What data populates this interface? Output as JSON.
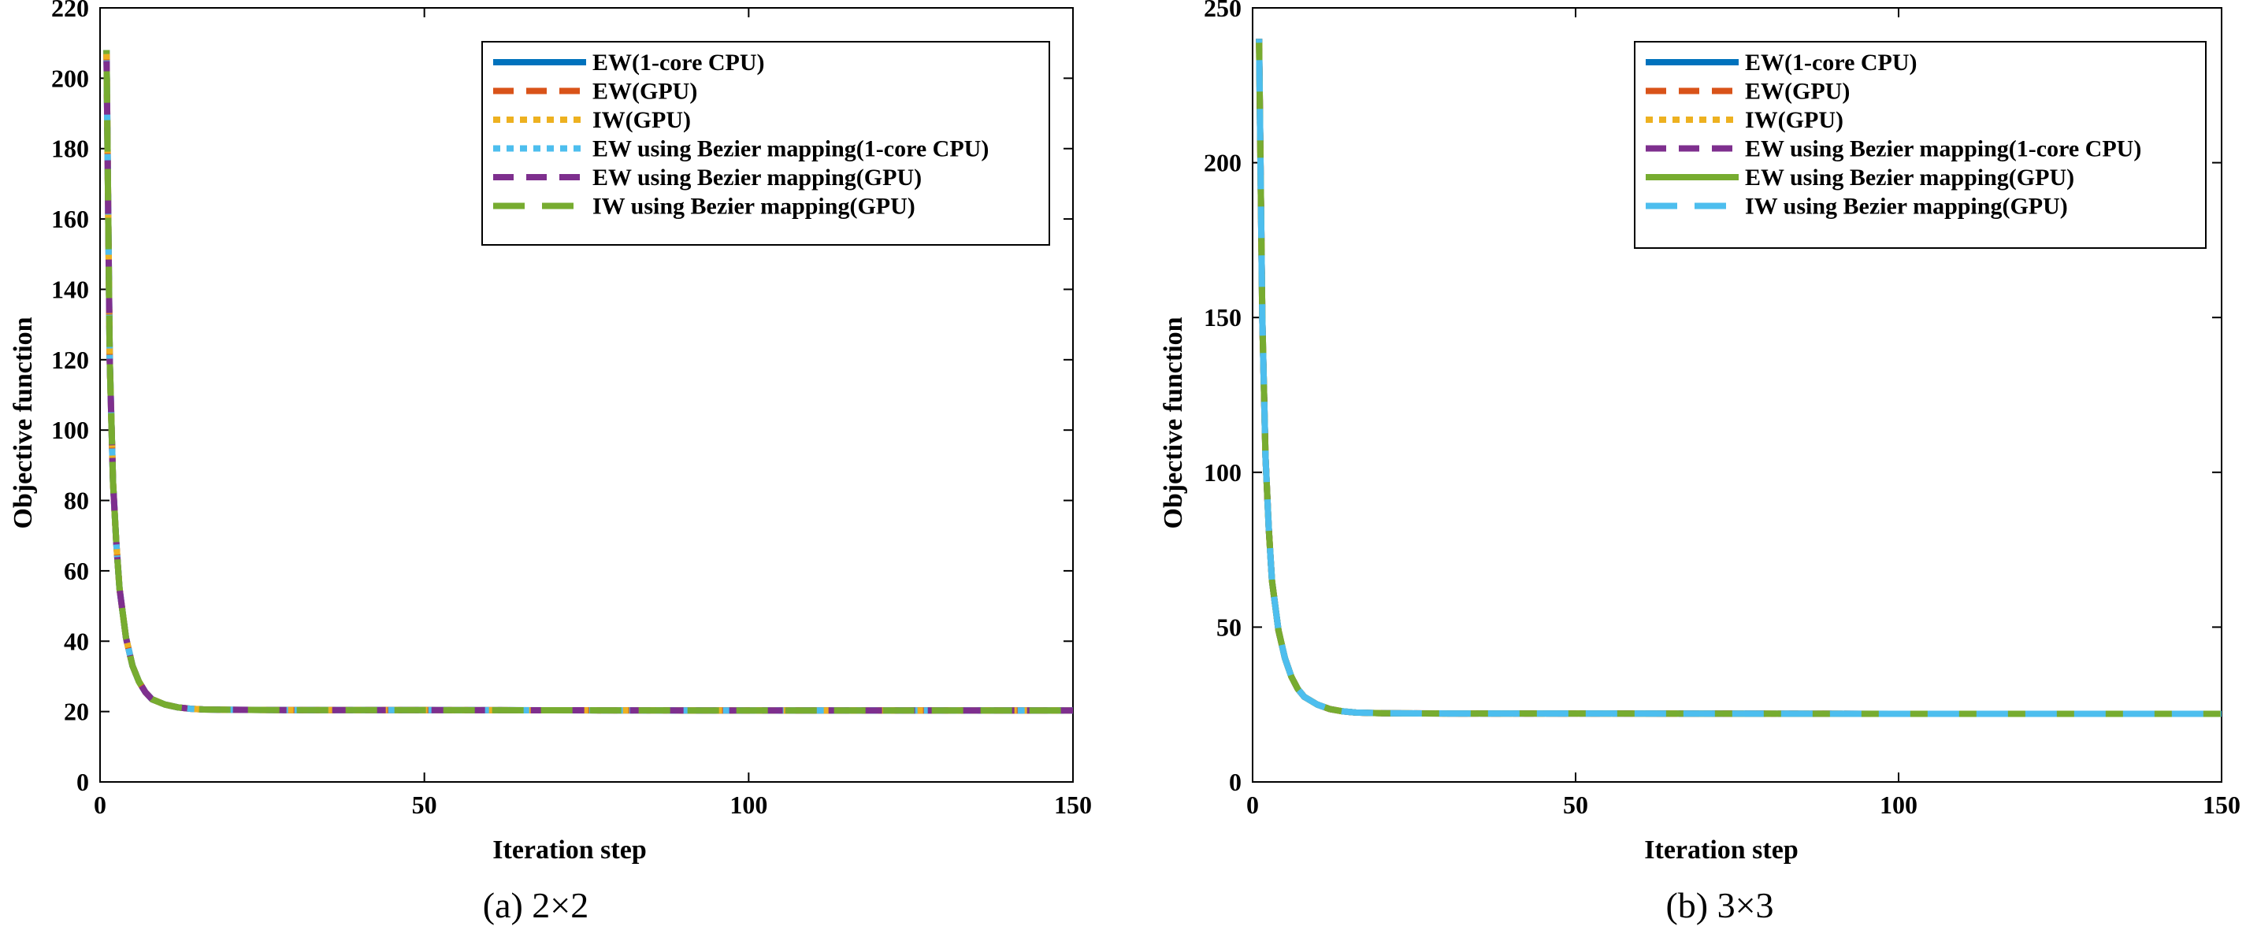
{
  "colors": {
    "blue": "#0072BD",
    "orange": "#D95319",
    "yellow": "#EDB120",
    "purple": "#7E2F8E",
    "green": "#77AC30",
    "cyan": "#4DBEEE"
  },
  "chart_data": [
    {
      "type": "line",
      "caption": "(a) 2×2",
      "xlabel": "Iteration step",
      "ylabel": "Objective function",
      "xlim": [
        0,
        150
      ],
      "ylim": [
        0,
        220
      ],
      "xticks": [
        0,
        50,
        100,
        150
      ],
      "yticks": [
        0,
        20,
        40,
        60,
        80,
        100,
        120,
        140,
        160,
        180,
        200,
        220
      ],
      "grid": false,
      "legend_position": "top-right",
      "curve": {
        "x": [
          1,
          1.5,
          2,
          2.5,
          3,
          4,
          5,
          6,
          7,
          8,
          10,
          12,
          14,
          16,
          20,
          30,
          50,
          100,
          150
        ],
        "y": [
          208,
          120,
          85,
          68,
          55,
          41,
          33,
          28.5,
          25.5,
          23.5,
          22,
          21.2,
          20.8,
          20.6,
          20.5,
          20.4,
          20.4,
          20.3,
          20.3
        ]
      },
      "series": [
        {
          "name": "EW(1-core CPU)",
          "color": "blue",
          "style": "solid"
        },
        {
          "name": "EW(GPU)",
          "color": "orange",
          "style": "dash"
        },
        {
          "name": "IW(GPU)",
          "color": "yellow",
          "style": "dot"
        },
        {
          "name": "EW using Bezier mapping(1-core CPU)",
          "color": "cyan",
          "style": "dot"
        },
        {
          "name": "EW using Bezier mapping(GPU)",
          "color": "purple",
          "style": "dash"
        },
        {
          "name": "IW using Bezier mapping(GPU)",
          "color": "green",
          "style": "longdash"
        }
      ]
    },
    {
      "type": "line",
      "caption": "(b) 3×3",
      "xlabel": "Iteration step",
      "ylabel": "Objective function",
      "xlim": [
        0,
        150
      ],
      "ylim": [
        0,
        250
      ],
      "xticks": [
        0,
        50,
        100,
        150
      ],
      "yticks": [
        0,
        50,
        100,
        150,
        200,
        250
      ],
      "grid": false,
      "legend_position": "top-right",
      "curve": {
        "x": [
          1,
          1.5,
          2,
          2.5,
          3,
          4,
          5,
          6,
          7,
          8,
          10,
          12,
          14,
          16,
          20,
          30,
          50,
          100,
          150
        ],
        "y": [
          240,
          150,
          105,
          82,
          65,
          49,
          40,
          34,
          30,
          27.5,
          25,
          23.5,
          22.8,
          22.4,
          22.2,
          22.1,
          22.1,
          22.0,
          22.0
        ]
      },
      "series": [
        {
          "name": "EW(1-core CPU)",
          "color": "blue",
          "style": "solid"
        },
        {
          "name": "EW(GPU)",
          "color": "orange",
          "style": "dash"
        },
        {
          "name": "IW(GPU)",
          "color": "yellow",
          "style": "dot"
        },
        {
          "name": "EW using Bezier mapping(1-core CPU)",
          "color": "purple",
          "style": "dash"
        },
        {
          "name": "EW using Bezier mapping(GPU)",
          "color": "green",
          "style": "solid"
        },
        {
          "name": "IW using Bezier mapping(GPU)",
          "color": "cyan",
          "style": "longdash"
        }
      ]
    }
  ]
}
